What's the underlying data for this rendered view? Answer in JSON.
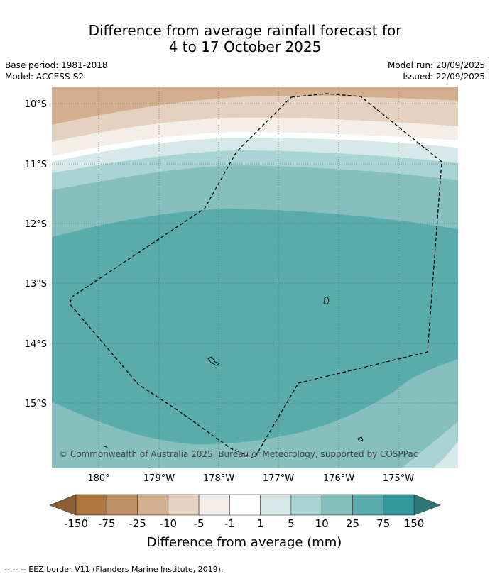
{
  "title": {
    "line1": "Difference from average rainfall forecast for",
    "line2": "4 to 17 October 2025"
  },
  "meta": {
    "base_period": "Base period: 1981-2018",
    "model": "Model: ACCESS-S2",
    "model_run": "Model run: 20/09/2025",
    "issued": "Issued: 22/09/2025"
  },
  "map": {
    "latitude_labels": [
      "10°S",
      "11°S",
      "12°S",
      "13°S",
      "14°S",
      "15°S"
    ],
    "longitude_labels": [
      "180°",
      "179°W",
      "178°W",
      "177°W",
      "176°W",
      "175°W"
    ],
    "credit": "© Commonwealth of Australia 2025, Bureau of Meteorology, supported by COSPPac",
    "gridlines": true
  },
  "colorbar": {
    "labels": [
      "-150",
      "-75",
      "-25",
      "-10",
      "-5",
      "-1",
      "1",
      "5",
      "10",
      "25",
      "75",
      "150"
    ],
    "colors": [
      "#ad7742",
      "#bf9266",
      "#d2b08f",
      "#e4d1c0",
      "#f3eee9",
      "#ffffff",
      "#d6e9e9",
      "#aad4d4",
      "#85c0bf",
      "#5aabab",
      "#33999a"
    ],
    "extend_low_color": "#8b5e34",
    "extend_high_color": "#2e7777",
    "title": "Difference from average (mm)"
  },
  "legend": {
    "eez_text": "--  --  -- EEZ border V11 (Flanders Marine Institute, 2019)."
  }
}
